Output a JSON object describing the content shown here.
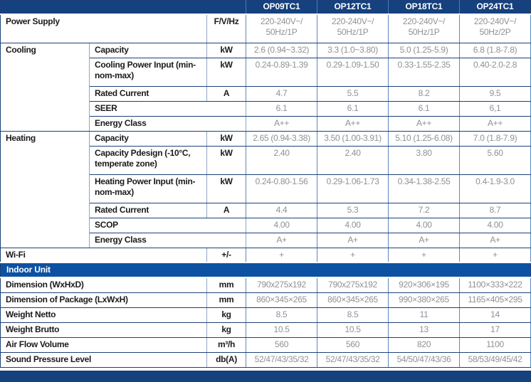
{
  "header": {
    "models": [
      "OP09TC1",
      "OP12TC1",
      "OP18TC1",
      "OP24TC1"
    ]
  },
  "rows": {
    "power_supply": {
      "label": "Power Supply",
      "unit": "F/V/Hz",
      "values": [
        "220-240V~/\n50Hz/1P",
        "220-240V~/\n50Hz/1P",
        "220-240V~/\n50Hz/1P",
        "220-240V~/\n50Hz/2P"
      ]
    },
    "cooling": {
      "label": "Cooling",
      "capacity": {
        "label": "Capacity",
        "unit": "kW",
        "values": [
          "2.6 (0.94~3.32)",
          "3.3 (1.0~3.80)",
          "5.0 (1.25-5.9)",
          "6.8 (1.8-7.8)"
        ]
      },
      "power_input": {
        "label": "Cooling Power Input (min-nom-max)",
        "unit": "kW",
        "values": [
          "0.24-0.89-1.39",
          "0.29-1.09-1.50",
          "0.33-1.55-2.35",
          "0.40-2.0-2.8"
        ]
      },
      "rated_current": {
        "label": "Rated Current",
        "unit": "A",
        "values": [
          "4.7",
          "5.5",
          "8.2",
          "9.5"
        ]
      },
      "seer": {
        "label": "SEER",
        "values": [
          "6.1",
          "6.1",
          "6.1",
          "6,1"
        ]
      },
      "energy_class": {
        "label": "Energy Class",
        "values": [
          "A++",
          "A++",
          "A++",
          "A++"
        ]
      }
    },
    "heating": {
      "label": "Heating",
      "capacity": {
        "label": "Capacity",
        "unit": "kW",
        "values": [
          "2.65 (0.94-3.38)",
          "3.50 (1.00-3.91)",
          "5.10 (1.25-6.08)",
          "7.0 (1.8-7.9)"
        ]
      },
      "pdesign": {
        "label": "Capacity Pdesign (-10°C, temperate zone)",
        "unit": "kW",
        "values": [
          "2.40",
          "2.40",
          "3.80",
          "5.60"
        ]
      },
      "power_input": {
        "label": "Heating Power Input (min-nom-max)",
        "unit": "kW",
        "values": [
          "0.24-0.80-1.56",
          "0.29-1.06-1.73",
          "0.34-1.38-2.55",
          "0.4-1.9-3.0"
        ]
      },
      "rated_current": {
        "label": "Rated Current",
        "unit": "A",
        "values": [
          "4.4",
          "5.3",
          "7.2",
          "8.7"
        ]
      },
      "scop": {
        "label": "SCOP",
        "values": [
          "4.00",
          "4.00",
          "4.00",
          "4.00"
        ]
      },
      "energy_class": {
        "label": "Energy Class",
        "values": [
          "A+",
          "A+",
          "A+",
          "A+"
        ]
      }
    },
    "wifi": {
      "label": "Wi-Fi",
      "unit": "+/-",
      "values": [
        "+",
        "+",
        "+",
        "+"
      ]
    },
    "indoor_unit": {
      "section_label": "Indoor Unit",
      "dimension": {
        "label": "Dimension (WxHxD)",
        "unit": "mm",
        "values": [
          "790x275x192",
          "790x275x192",
          "920×306×195",
          "1100×333×222"
        ]
      },
      "package": {
        "label": "Dimension of Package (LxWxH)",
        "unit": "mm",
        "values": [
          "860×345×265",
          "860×345×265",
          "990×380×265",
          "1165×405×295"
        ]
      },
      "weight_netto": {
        "label": "Weight Netto",
        "unit": "kg",
        "values": [
          "8.5",
          "8.5",
          "11",
          "14"
        ]
      },
      "weight_brutto": {
        "label": "Weight Brutto",
        "unit": "kg",
        "values": [
          "10.5",
          "10.5",
          "13",
          "17"
        ]
      },
      "air_flow": {
        "label": "Air Flow Volume",
        "unit": "m³/h",
        "values": [
          "560",
          "560",
          "820",
          "1100"
        ]
      },
      "sound_pressure": {
        "label": "Sound Pressure Level",
        "unit": "db(A)",
        "values": [
          "52/47/43/35/32",
          "52/47/43/35/32",
          "54/50/47/43/36",
          "58/53/49/45/42"
        ]
      }
    }
  },
  "colors": {
    "header_bar": "#15417e",
    "section_bar": "#0d52a2",
    "footer_bar": "#15417e",
    "grid_horizontal": "#1d4077",
    "grid_vertical": "#5d87bf",
    "value_text": "#8f9194",
    "label_text": "#1b1b1b"
  }
}
